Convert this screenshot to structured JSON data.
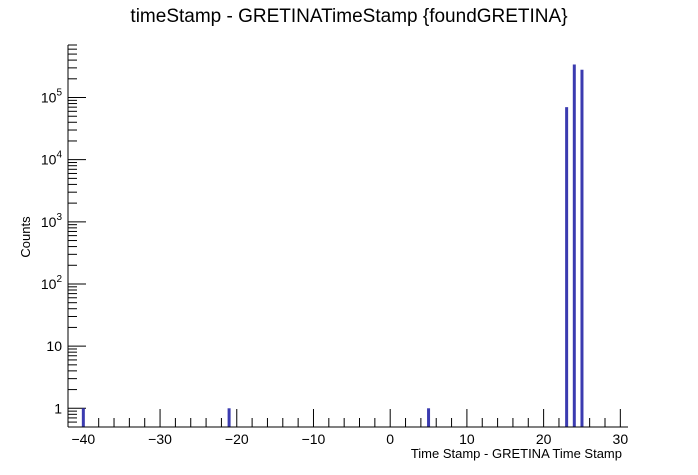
{
  "chart_data": {
    "type": "bar",
    "title": "timeStamp - GRETINATimeStamp {foundGRETINA}",
    "xlabel": "Time Stamp - GRETINA Time Stamp",
    "ylabel": "Counts",
    "xlim": [
      -42,
      31
    ],
    "ylim": [
      0.5,
      700000
    ],
    "y_scale": "log",
    "x_ticks": [
      -40,
      -30,
      -20,
      -10,
      0,
      10,
      20,
      30
    ],
    "x_tick_labels": [
      "−40",
      "−30",
      "−20",
      "−10",
      "0",
      "10",
      "20",
      "30"
    ],
    "y_ticks": [
      1,
      10,
      100,
      1000,
      10000,
      100000
    ],
    "y_tick_labels": [
      {
        "base": "1",
        "exp": ""
      },
      {
        "base": "10",
        "exp": ""
      },
      {
        "base": "10",
        "exp": "2"
      },
      {
        "base": "10",
        "exp": "3"
      },
      {
        "base": "10",
        "exp": "4"
      },
      {
        "base": "10",
        "exp": "5"
      }
    ],
    "series": [
      {
        "color": "#3b3bb0",
        "x": [
          -40,
          -21,
          5,
          23,
          24,
          25
        ],
        "values": [
          1,
          1,
          1,
          70000,
          340000,
          280000
        ]
      }
    ],
    "grid": false,
    "legend": "none"
  }
}
